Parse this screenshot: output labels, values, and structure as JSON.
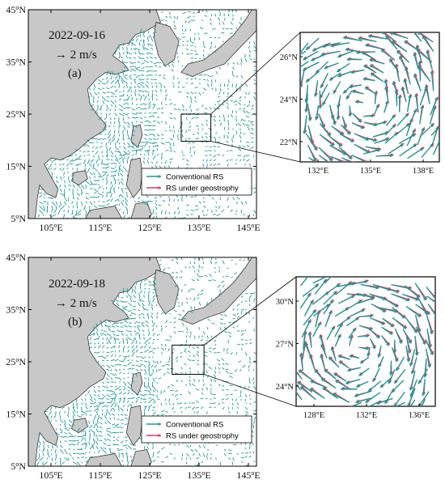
{
  "colors": {
    "land": "#c8c8c8",
    "ocean": "#ffffff",
    "conventional": "#1a9a98",
    "geostrophy": "#d83a64",
    "frame": "#000000"
  },
  "panels": [
    {
      "id": "a",
      "date": "2022-09-16",
      "scale_label": "→ 2 m/s",
      "panel_label": "(a)",
      "lat_labels": [
        {
          "deg": "45",
          "sup": "o",
          "dir": "N"
        },
        {
          "deg": "35",
          "sup": "o",
          "dir": "N"
        },
        {
          "deg": "25",
          "sup": "o",
          "dir": "N"
        },
        {
          "deg": "15",
          "sup": "o",
          "dir": "N"
        },
        {
          "deg": "5",
          "sup": "o",
          "dir": "N"
        }
      ],
      "lon_labels": [
        {
          "deg": "105",
          "sup": "o",
          "dir": "E"
        },
        {
          "deg": "115",
          "sup": "o",
          "dir": "E"
        },
        {
          "deg": "125",
          "sup": "o",
          "dir": "E"
        },
        {
          "deg": "135",
          "sup": "o",
          "dir": "E"
        },
        {
          "deg": "145",
          "sup": "o",
          "dir": "E"
        }
      ],
      "legend": [
        "Conventional RS",
        "RS under geostrophy"
      ],
      "inset": {
        "lat_labels": [
          "26°N",
          "24°N",
          "22°N"
        ],
        "lon_labels": [
          "132°E",
          "135°E",
          "138°E"
        ]
      }
    },
    {
      "id": "b",
      "date": "2022-09-18",
      "scale_label": "→ 2 m/s",
      "panel_label": "(b)",
      "lat_labels": [
        {
          "deg": "45",
          "sup": "o",
          "dir": "N"
        },
        {
          "deg": "35",
          "sup": "o",
          "dir": "N"
        },
        {
          "deg": "25",
          "sup": "o",
          "dir": "N"
        },
        {
          "deg": "15",
          "sup": "o",
          "dir": "N"
        },
        {
          "deg": "5",
          "sup": "o",
          "dir": "N"
        }
      ],
      "lon_labels": [
        {
          "deg": "105",
          "sup": "o",
          "dir": "E"
        },
        {
          "deg": "115",
          "sup": "o",
          "dir": "E"
        },
        {
          "deg": "125",
          "sup": "o",
          "dir": "E"
        },
        {
          "deg": "135",
          "sup": "o",
          "dir": "E"
        },
        {
          "deg": "145",
          "sup": "o",
          "dir": "E"
        }
      ],
      "legend": [
        "Conventional RS",
        "RS under geostrophy"
      ],
      "inset": {
        "lat_labels": [
          "30°N",
          "27°N",
          "24°N"
        ],
        "lon_labels": [
          "128°E",
          "132°E",
          "136°E"
        ]
      }
    }
  ]
}
